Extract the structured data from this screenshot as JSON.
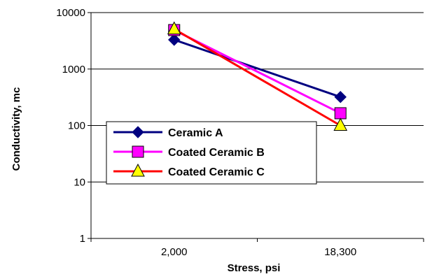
{
  "chart_data": {
    "type": "line",
    "xlabel": "Stress, psi",
    "ylabel": "Conductivity, mc",
    "categories": [
      "2,000",
      "18,300"
    ],
    "y_scale": "log",
    "ylim": [
      1,
      10000
    ],
    "y_ticks": [
      {
        "value": 1,
        "label": "1"
      },
      {
        "value": 10,
        "label": "10"
      },
      {
        "value": 100,
        "label": "100"
      },
      {
        "value": 1000,
        "label": "1000"
      },
      {
        "value": 10000,
        "label": "10000"
      }
    ],
    "grid": "horizontal major gridlines",
    "legend_position": "left-center",
    "series": [
      {
        "name": "Ceramic A",
        "values": [
          3300,
          320
        ],
        "color": "#000080",
        "marker": "diamond"
      },
      {
        "name": "Coated Ceramic B",
        "values": [
          4900,
          165
        ],
        "color": "#ff00ff",
        "marker": "square"
      },
      {
        "name": "Coated Ceramic C",
        "values": [
          5100,
          100
        ],
        "color": "#ff0000",
        "marker": "triangle",
        "marker_fill": "#ffff00"
      }
    ]
  }
}
